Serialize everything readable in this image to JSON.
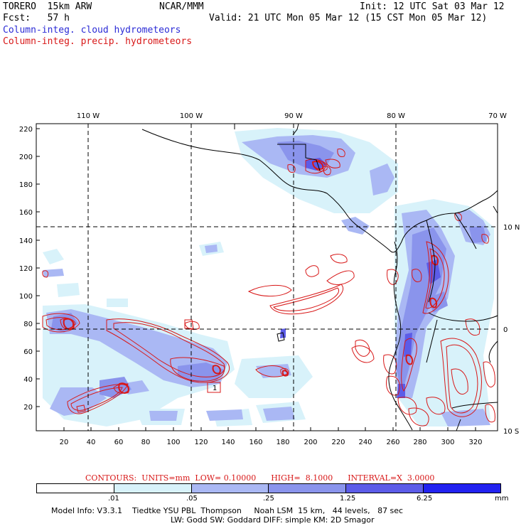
{
  "header": {
    "model": "TORERO  15km ARW",
    "org": "NCAR/MMM",
    "init": "Init: 12 UTC Sat 03 Mar 12",
    "fcst": "Fcst:   57 h",
    "valid": "Valid: 21 UTC Mon 05 Mar 12 (15 CST Mon 05 Mar 12)",
    "field1": "Column-integ. cloud hydrometeors",
    "field2": "Column-integ. precip. hydrometeors"
  },
  "axes": {
    "top_labels": [
      "110 W",
      "100 W",
      "90 W",
      "80 W",
      "70 W"
    ],
    "right_labels": [
      "10 N",
      "0",
      "10 S"
    ],
    "y_ticks": [
      "220",
      "200",
      "180",
      "160",
      "140",
      "120",
      "100",
      "80",
      "60",
      "40",
      "20"
    ],
    "x_ticks": [
      "20",
      "40",
      "60",
      "80",
      "100",
      "120",
      "140",
      "160",
      "180",
      "200",
      "220",
      "240",
      "260",
      "280",
      "300",
      "320"
    ]
  },
  "contours": {
    "text": "CONTOURS:  UNITS=mm  LOW= 0.10000      HIGH=  8.1000      INTERVAL=X  3.0000"
  },
  "colorbar": {
    "labels": [
      ".01",
      ".05",
      ".25",
      "1.25",
      "6.25",
      "mm"
    ],
    "colors": [
      "#ffffff",
      "#d8f2fa",
      "#aab8f4",
      "#8a94ec",
      "#5c5ce8",
      "#2222f0"
    ],
    "unit": "mm"
  },
  "footer": {
    "line1": "Model Info: V3.3.1    Tiedtke YSU PBL  Thompson     Noah LSM  15 km,   44 levels,   87 sec",
    "line2": "LW: Godd SW: Goddard DIFF: simple KM: 2D Smagor"
  },
  "colors": {
    "cloud_light": "#d8f2fa",
    "cloud_mid": "#aab8f4",
    "cloud_dark": "#8a94ec",
    "cloud_deep": "#5c5ce8",
    "precip": "#d81818"
  }
}
